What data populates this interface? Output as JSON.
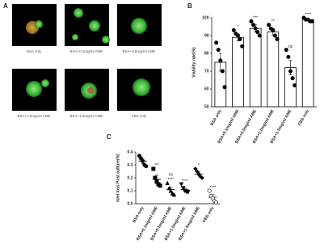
{
  "panel_a": {
    "label": "A",
    "captions": [
      "BSA only",
      "BSA+0.1mg/ml AME",
      "BSA+0.5mg/ml AME",
      "BSA+1.0mg/ml AME",
      "BSA+1.5mg/ml AME",
      "FBS only"
    ]
  },
  "chart_data": [
    {
      "type": "bar",
      "panel": "B",
      "ylabel": "Viability rate(%)",
      "categories": [
        "BSA only",
        "BSA+0.1mg/ml AME",
        "BSA+0.5mg/ml AME",
        "BSA+1.0mg/ml AME",
        "BSA+1.5mg/ml AME",
        "FBS only"
      ],
      "values": [
        75,
        89,
        94,
        92,
        72,
        99
      ],
      "errors": [
        5,
        2,
        2,
        2,
        4,
        0.5
      ],
      "points": [
        [
          86,
          82,
          76,
          70,
          61
        ],
        [
          93,
          91,
          90,
          88,
          84
        ],
        [
          98,
          96,
          94,
          92,
          90
        ],
        [
          96,
          94,
          93,
          90,
          88
        ],
        [
          82,
          78,
          70,
          66,
          62
        ],
        [
          100,
          99,
          99,
          98,
          98
        ]
      ],
      "annotations": [
        [],
        [
          "*"
        ],
        [
          "***"
        ],
        [
          "**"
        ],
        [
          "ns"
        ],
        [
          "****"
        ]
      ],
      "color": "#000000",
      "ylim": [
        50,
        100
      ],
      "yticks": [
        50,
        60,
        70,
        80,
        90,
        100
      ]
    },
    {
      "type": "dot",
      "panel": "C",
      "ylabel": "Islet loss Post culture(%)",
      "categories": [
        "BSA only",
        "BSA+0.1mg/ml AME",
        "BSA+0.5mg/ml AME",
        "BSA+1.0mg/ml AME",
        "BSA+1.5mg/ml AME",
        "FBS only"
      ],
      "values": [
        0.33,
        0.19,
        0.11,
        0.11,
        0.23,
        0.05
      ],
      "errors": [
        0.02,
        0.03,
        0.02,
        0.015,
        0.015,
        0.02
      ],
      "points": [
        [
          0.37,
          0.35,
          0.33,
          0.3,
          0.29
        ],
        [
          0.27,
          0.2,
          0.17,
          0.15,
          0.14
        ],
        [
          0.16,
          0.12,
          0.1,
          0.08,
          0.07
        ],
        [
          0.15,
          0.12,
          0.1,
          0.09,
          0.09
        ],
        [
          0.27,
          0.25,
          0.23,
          0.21,
          0.2
        ],
        [
          0.1,
          0.06,
          0.04,
          0.02,
          0.01
        ]
      ],
      "markers": [
        "circle",
        "square",
        "triangle",
        "triangle-down",
        "diamond",
        "open-circle"
      ],
      "annotations": [
        [],
        [
          "***"
        ],
        [
          "ns",
          "****"
        ],
        [
          "****"
        ],
        [
          "*"
        ],
        [
          "****"
        ]
      ],
      "color": "#000000",
      "ylim": [
        0,
        0.4
      ],
      "yticks": [
        {
          "value": 0,
          "label": "0.0"
        },
        0.1,
        0.2,
        0.3,
        0.4
      ]
    }
  ]
}
